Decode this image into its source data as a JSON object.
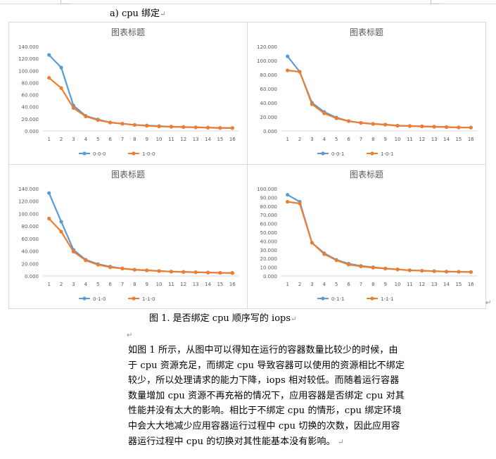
{
  "heading": {
    "text": "a)    cpu 绑定",
    "mark": "↵"
  },
  "caption": {
    "text": "图 1. 是否绑定 cpu  顺序写的 iops",
    "mark": "↵"
  },
  "blank_mark": "↵",
  "side_mark": "↵",
  "paragraph": {
    "lines": [
      "如图 1 所示，从图中可以得知在运行的容器数量比较少的时候，由",
      "于 cpu 资源充足，而绑定 cpu 导致容器可以使用的资源相比不绑定",
      "较少，所以处理请求的能力下降，iops 相对较低。而随着运行容器",
      "数量增加 cpu 资源不再充裕的情况下，应用容器是否绑定 cpu 对其",
      "性能并没有太大的影响。相比于不绑定 cpu 的情形，cpu 绑定环境",
      "中会大大地减少应用容器运行过程中 cpu 切换的次数，因此应用容",
      "器运行过程中 cpu 的切换对其性能基本没有影响。"
    ],
    "mark": "↵"
  },
  "colors": {
    "series1": "#5b9bd5",
    "series2": "#ed7d31",
    "axis": "#d9d9d9",
    "text": "#595959",
    "title": "#595959"
  },
  "chart_data": [
    {
      "type": "line",
      "title": "图表标题",
      "x": [
        1,
        2,
        3,
        4,
        5,
        6,
        7,
        8,
        9,
        10,
        11,
        12,
        13,
        14,
        15,
        16
      ],
      "ylim": [
        0,
        140
      ],
      "yticks": [
        "0.000",
        "20.000",
        "40.000",
        "60.000",
        "80.000",
        "100.000",
        "120.000",
        "140.000"
      ],
      "ytick_values": [
        0,
        20,
        40,
        60,
        80,
        100,
        120,
        140
      ],
      "legend_position": "bottom",
      "series": [
        {
          "name": "0-0-0",
          "values": [
            126,
            105,
            42,
            25,
            19,
            14,
            12,
            10,
            9,
            8,
            7,
            6.5,
            6,
            5.5,
            5,
            4.8
          ]
        },
        {
          "name": "1-0-0",
          "values": [
            88,
            71,
            38,
            24,
            18,
            14,
            12,
            10,
            8.5,
            7.5,
            7,
            6.5,
            6,
            5.5,
            5,
            4.8
          ]
        }
      ]
    },
    {
      "type": "line",
      "title": "图表标题",
      "x": [
        1,
        2,
        3,
        4,
        5,
        6,
        7,
        8,
        9,
        10,
        11,
        12,
        13,
        14,
        15,
        16
      ],
      "ylim": [
        0,
        120
      ],
      "yticks": [
        "0.000",
        "20.000",
        "40.000",
        "60.000",
        "80.000",
        "100.000",
        "120.000"
      ],
      "ytick_values": [
        0,
        20,
        40,
        60,
        80,
        100,
        120
      ],
      "legend_position": "bottom",
      "series": [
        {
          "name": "0-0-1",
          "values": [
            106,
            84,
            40,
            27,
            19,
            14,
            11.5,
            10,
            9,
            7.5,
            7,
            6.5,
            6,
            5.5,
            5,
            4.8
          ]
        },
        {
          "name": "1-0-1",
          "values": [
            86,
            84,
            38,
            25,
            18,
            14,
            11.5,
            10,
            9,
            7.5,
            7,
            6.5,
            6,
            5.5,
            5,
            4.8
          ]
        }
      ]
    },
    {
      "type": "line",
      "title": "图表标题",
      "x": [
        1,
        2,
        3,
        4,
        5,
        6,
        7,
        8,
        9,
        10,
        11,
        12,
        13,
        14,
        15,
        16
      ],
      "ylim": [
        0,
        140
      ],
      "yticks": [
        "0.000",
        "20.000",
        "40.000",
        "60.000",
        "80.000",
        "100.000",
        "120.000",
        "140.000"
      ],
      "ytick_values": [
        0,
        20,
        40,
        60,
        80,
        100,
        120,
        140
      ],
      "legend_position": "bottom",
      "series": [
        {
          "name": "0-1-0",
          "values": [
            133,
            87,
            42,
            26,
            19,
            15,
            12,
            10,
            9,
            8,
            7,
            6.5,
            6,
            5.5,
            5,
            4.8
          ]
        },
        {
          "name": "1-1-0",
          "values": [
            92,
            71,
            39,
            25,
            18,
            14,
            12,
            10,
            9,
            8,
            7,
            6.5,
            6,
            5.5,
            5,
            4.8
          ]
        }
      ]
    },
    {
      "type": "line",
      "title": "图表标题",
      "x": [
        1,
        2,
        3,
        4,
        5,
        6,
        7,
        8,
        9,
        10,
        11,
        12,
        13,
        14,
        15,
        16
      ],
      "ylim": [
        0,
        100
      ],
      "yticks": [
        "0.000",
        "10.000",
        "20.000",
        "30.000",
        "40.000",
        "50.000",
        "60.000",
        "70.000",
        "80.000",
        "90.000",
        "100.000"
      ],
      "ytick_values": [
        0,
        10,
        20,
        30,
        40,
        50,
        60,
        70,
        80,
        90,
        100
      ],
      "legend_position": "bottom",
      "series": [
        {
          "name": "0-1-1",
          "values": [
            93,
            85,
            38,
            26,
            18.5,
            14,
            11.5,
            10,
            8.5,
            7.5,
            6.5,
            6,
            5.5,
            5,
            4.8,
            4.5
          ]
        },
        {
          "name": "1-1-1",
          "values": [
            85,
            83,
            38,
            25,
            18,
            13,
            11,
            9.5,
            8.5,
            7.5,
            6.5,
            6,
            5.5,
            5,
            4.8,
            4.5
          ]
        }
      ]
    }
  ]
}
